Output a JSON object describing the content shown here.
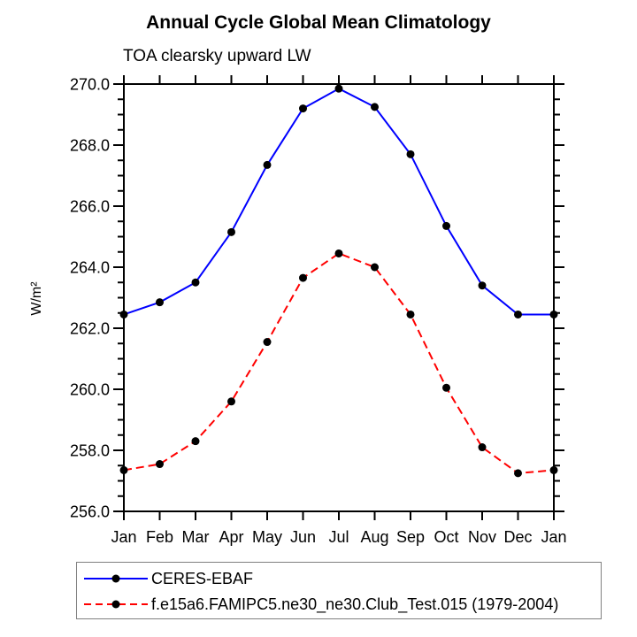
{
  "chart": {
    "title": "Annual Cycle Global Mean Climatology",
    "subtitle": "TOA clearsky upward LW"
  },
  "chart_data": {
    "type": "line",
    "categories": [
      "Jan",
      "Feb",
      "Mar",
      "Apr",
      "May",
      "Jun",
      "Jul",
      "Aug",
      "Sep",
      "Oct",
      "Nov",
      "Dec",
      "Jan"
    ],
    "series": [
      {
        "name": "CERES-EBAF",
        "color": "#0000ff",
        "line_style": "solid",
        "marker": "filled-circle",
        "marker_color": "#000000",
        "values": [
          262.45,
          262.85,
          263.5,
          265.15,
          267.35,
          269.2,
          269.85,
          269.25,
          267.7,
          265.35,
          263.4,
          262.45,
          262.45
        ]
      },
      {
        "name": "f.e15a6.FAMIPC5.ne30_ne30.Club_Test.015 (1979-2004)",
        "color": "#ff0000",
        "line_style": "dashed",
        "marker": "filled-circle",
        "marker_color": "#000000",
        "values": [
          257.35,
          257.55,
          258.3,
          259.6,
          261.55,
          263.65,
          264.45,
          264.0,
          262.45,
          260.05,
          258.1,
          257.25,
          257.35
        ]
      }
    ],
    "xlabel": "",
    "ylabel": "W/m²",
    "ylim": [
      256,
      270
    ],
    "ytick_major_interval": 2.0,
    "ytick_minor_interval": 0.5,
    "ytick_labels": [
      "256.0",
      "258.0",
      "260.0",
      "262.0",
      "264.0",
      "266.0",
      "268.0",
      "270.0"
    ],
    "grid": false,
    "axis_color": "#000000",
    "legend_position": "bottom-left"
  }
}
